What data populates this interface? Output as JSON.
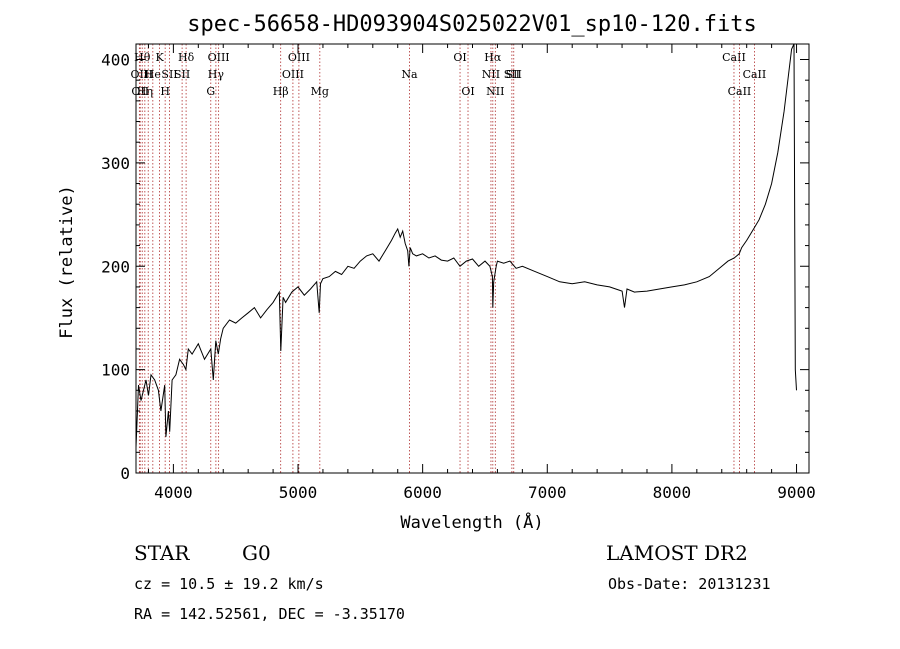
{
  "chart_data": {
    "type": "line",
    "title": "spec-56658-HD093904S025022V01_sp10-120.fits",
    "xlabel": "Wavelength (Å)",
    "ylabel": "Flux (relative)",
    "xlim": [
      3700,
      9100
    ],
    "ylim": [
      0,
      415
    ],
    "xticks": [
      4000,
      5000,
      6000,
      7000,
      8000,
      9000
    ],
    "yticks": [
      0,
      100,
      200,
      300,
      400
    ],
    "grid": false,
    "legend": "none",
    "series": [
      {
        "x": [
          3700,
          3720,
          3740,
          3760,
          3780,
          3800,
          3820,
          3850,
          3880,
          3900,
          3930,
          3940,
          3960,
          3970,
          3990,
          4020,
          4050,
          4080,
          4100,
          4120,
          4150,
          4200,
          4250,
          4300,
          4320,
          4340,
          4360,
          4380,
          4400,
          4450,
          4500,
          4550,
          4600,
          4650,
          4700,
          4750,
          4800,
          4850,
          4862,
          4880,
          4900,
          4950,
          5000,
          5050,
          5100,
          5150,
          5170,
          5180,
          5200,
          5250,
          5300,
          5350,
          5400,
          5450,
          5500,
          5550,
          5600,
          5650,
          5700,
          5750,
          5780,
          5800,
          5820,
          5840,
          5860,
          5880,
          5890,
          5900,
          5920,
          5950,
          6000,
          6050,
          6100,
          6150,
          6200,
          6250,
          6300,
          6350,
          6400,
          6450,
          6500,
          6540,
          6560,
          6563,
          6570,
          6590,
          6600,
          6650,
          6700,
          6750,
          6800,
          6900,
          7000,
          7100,
          7200,
          7300,
          7400,
          7500,
          7550,
          7600,
          7620,
          7640,
          7700,
          7800,
          7900,
          8000,
          8100,
          8200,
          8300,
          8400,
          8450,
          8500,
          8540,
          8560,
          8600,
          8650,
          8700,
          8750,
          8800,
          8850,
          8900,
          8920,
          8940,
          8960,
          8980,
          8990,
          9000
        ],
        "y": [
          25,
          85,
          70,
          80,
          90,
          75,
          95,
          90,
          80,
          60,
          85,
          35,
          60,
          40,
          90,
          95,
          110,
          105,
          100,
          120,
          115,
          125,
          110,
          120,
          90,
          128,
          115,
          130,
          140,
          148,
          145,
          150,
          155,
          160,
          150,
          158,
          165,
          175,
          118,
          170,
          165,
          175,
          180,
          172,
          178,
          185,
          155,
          183,
          188,
          190,
          195,
          192,
          200,
          198,
          205,
          210,
          212,
          205,
          215,
          225,
          232,
          236,
          228,
          234,
          222,
          215,
          200,
          218,
          212,
          210,
          212,
          208,
          210,
          206,
          205,
          208,
          200,
          205,
          207,
          200,
          205,
          200,
          190,
          160,
          185,
          200,
          205,
          203,
          205,
          198,
          200,
          195,
          190,
          185,
          183,
          185,
          182,
          180,
          178,
          176,
          160,
          178,
          175,
          176,
          178,
          180,
          182,
          185,
          190,
          200,
          205,
          208,
          212,
          218,
          225,
          235,
          245,
          260,
          280,
          310,
          350,
          370,
          390,
          410,
          415,
          100,
          80
        ]
      }
    ],
    "lines": [
      {
        "x": 3727,
        "label": "OII",
        "row": 2
      },
      {
        "x": 3734,
        "label": "OII",
        "row": 3
      },
      {
        "x": 3750,
        "label": "Hθ",
        "row": 1
      },
      {
        "x": 3771,
        "label": "Hη",
        "row": 3
      },
      {
        "x": 3798,
        "label": "H",
        "row": 2
      },
      {
        "x": 3835,
        "label": "He",
        "row": 2
      },
      {
        "x": 3889,
        "label": "K",
        "row": 1
      },
      {
        "x": 3934,
        "label": "H",
        "row": 3
      },
      {
        "x": 3969,
        "label": "SII",
        "row": 2
      },
      {
        "x": 4070,
        "label": "SII",
        "row": 2
      },
      {
        "x": 4102,
        "label": "Hδ",
        "row": 1
      },
      {
        "x": 4300,
        "label": "G",
        "row": 3
      },
      {
        "x": 4341,
        "label": "Hγ",
        "row": 2
      },
      {
        "x": 4363,
        "label": "OIII",
        "row": 1
      },
      {
        "x": 4861,
        "label": "Hβ",
        "row": 3
      },
      {
        "x": 4959,
        "label": "OIII",
        "row": 2
      },
      {
        "x": 5007,
        "label": "OIII",
        "row": 1
      },
      {
        "x": 5175,
        "label": "Mg",
        "row": 3
      },
      {
        "x": 5894,
        "label": "Na",
        "row": 2
      },
      {
        "x": 6300,
        "label": "OI",
        "row": 1
      },
      {
        "x": 6364,
        "label": "OI",
        "row": 3
      },
      {
        "x": 6548,
        "label": "NII",
        "row": 2
      },
      {
        "x": 6563,
        "label": "Hα",
        "row": 1
      },
      {
        "x": 6583,
        "label": "NII",
        "row": 3
      },
      {
        "x": 6716,
        "label": "SII",
        "row": 2
      },
      {
        "x": 6731,
        "label": "SII",
        "row": 2
      },
      {
        "x": 8498,
        "label": "CaII",
        "row": 1
      },
      {
        "x": 8542,
        "label": "CaII",
        "row": 3
      },
      {
        "x": 8662,
        "label": "CaII",
        "row": 2
      }
    ]
  },
  "info": {
    "object_type": "STAR",
    "subclass": "G0",
    "survey": "LAMOST DR2",
    "cz": "cz = 10.5 ± 19.2 km/s",
    "obs_date": "Obs-Date: 20131231",
    "radec": "RA = 142.52561, DEC =  -3.35170"
  }
}
